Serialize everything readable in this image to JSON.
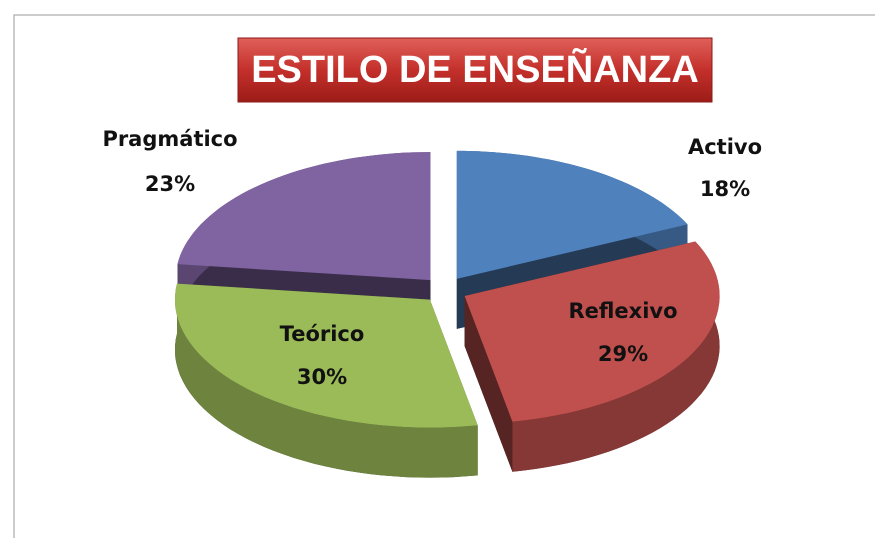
{
  "chart_data": {
    "type": "pie",
    "title": "ESTILO DE ENSEÑANZA",
    "categories": [
      "Activo",
      "Reflexivo",
      "Teórico",
      "Pragmático"
    ],
    "values": [
      18,
      29,
      30,
      23
    ],
    "value_labels": [
      "18%",
      "29%",
      "30%",
      "23%"
    ],
    "colors": [
      "#4f81bd",
      "#c0504d",
      "#9bbb59",
      "#8064a2"
    ]
  }
}
